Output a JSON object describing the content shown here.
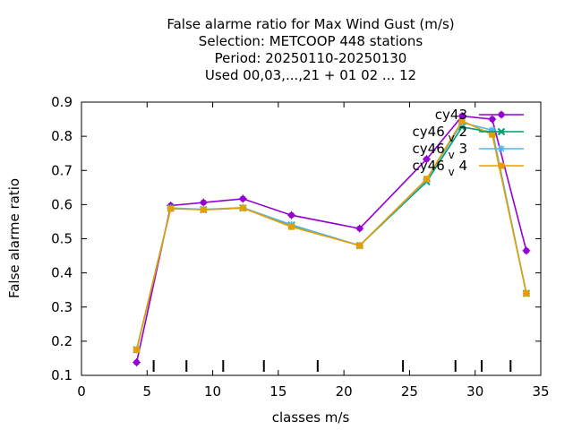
{
  "chart_data": {
    "type": "line",
    "title_lines": [
      "False alarme ratio  for Max Wind Gust (m/s)",
      "Selection: METCOOP    448 stations",
      "Period: 20250110-20250130",
      "Used  00,03,...,21  + 01 02 ... 12"
    ],
    "xlabel": "classes m/s",
    "ylabel": "False alarme ratio",
    "xlim": [
      0,
      35
    ],
    "ylim": [
      0.1,
      0.9
    ],
    "x_ticks": [
      0,
      5,
      10,
      15,
      20,
      25,
      30,
      35
    ],
    "y_ticks": [
      0.1,
      0.2,
      0.3,
      0.4,
      0.5,
      0.6,
      0.7,
      0.8,
      0.9
    ],
    "x_tick_labels": [
      "0",
      "5",
      "10",
      "15",
      "20",
      "25",
      "30",
      "35"
    ],
    "y_tick_labels": [
      "0.1",
      "0.2",
      "0.3",
      "0.4",
      "0.5",
      "0.6",
      "0.7",
      "0.8",
      "0.9"
    ],
    "class_boundary_marks": [
      5.5,
      8.0,
      10.8,
      13.9,
      18.0,
      24.5,
      28.5,
      30.5,
      32.7
    ],
    "legend_position": "top-right",
    "grid": false,
    "series": [
      {
        "name": "cy43",
        "color": "#9400d3",
        "marker": "circle",
        "points": [
          [
            4.2,
            0.138
          ],
          [
            6.8,
            0.597
          ],
          [
            9.3,
            0.606
          ],
          [
            12.3,
            0.617
          ],
          [
            16.0,
            0.569
          ],
          [
            21.2,
            0.53
          ],
          [
            26.3,
            0.733
          ],
          [
            29.0,
            0.859
          ],
          [
            31.3,
            0.85
          ],
          [
            33.9,
            0.465
          ]
        ]
      },
      {
        "name": "cy46_v2",
        "color": "#009e73",
        "marker": "x",
        "points": [
          [
            4.2,
            0.175
          ],
          [
            6.8,
            0.59
          ],
          [
            9.3,
            0.585
          ],
          [
            12.3,
            0.59
          ],
          [
            16.0,
            0.54
          ],
          [
            21.2,
            0.48
          ],
          [
            26.3,
            0.667
          ],
          [
            29.0,
            0.827
          ],
          [
            31.3,
            0.812
          ],
          [
            33.9,
            0.34
          ]
        ]
      },
      {
        "name": "cy46_v3",
        "color": "#56b4e9",
        "marker": "star",
        "points": [
          [
            4.2,
            0.175
          ],
          [
            6.8,
            0.59
          ],
          [
            9.3,
            0.586
          ],
          [
            12.3,
            0.591
          ],
          [
            16.0,
            0.541
          ],
          [
            21.2,
            0.48
          ],
          [
            26.3,
            0.672
          ],
          [
            29.0,
            0.84
          ],
          [
            31.3,
            0.818
          ],
          [
            33.9,
            0.34
          ]
        ]
      },
      {
        "name": "cy46_v4",
        "color": "#e69f00",
        "marker": "square",
        "points": [
          [
            4.2,
            0.175
          ],
          [
            6.8,
            0.588
          ],
          [
            9.3,
            0.585
          ],
          [
            12.3,
            0.59
          ],
          [
            16.0,
            0.535
          ],
          [
            21.2,
            0.48
          ],
          [
            26.3,
            0.675
          ],
          [
            29.0,
            0.845
          ],
          [
            31.3,
            0.805
          ],
          [
            33.9,
            0.34
          ]
        ]
      }
    ]
  },
  "legend": {
    "items": [
      {
        "base": "cy43",
        "sub": "",
        "suffix": ""
      },
      {
        "base": "cy46",
        "sub": "v",
        "suffix": "2"
      },
      {
        "base": "cy46",
        "sub": "v",
        "suffix": "3"
      },
      {
        "base": "cy46",
        "sub": "v",
        "suffix": "4"
      }
    ]
  }
}
